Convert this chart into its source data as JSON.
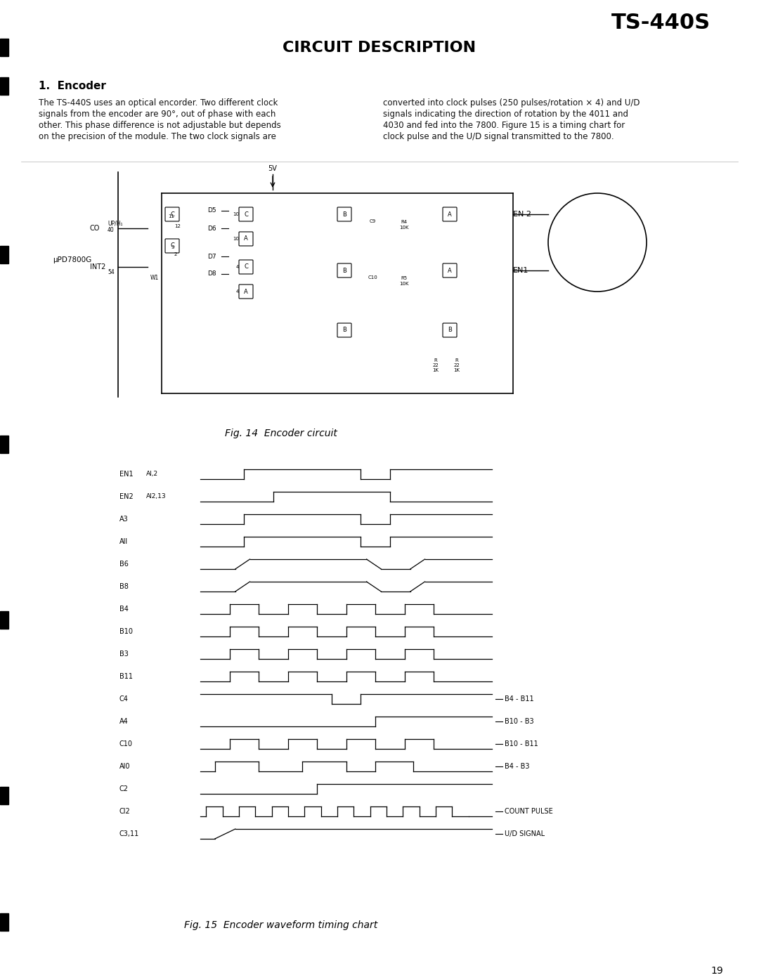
{
  "title_model": "TS-440S",
  "main_title": "CIRCUIT DESCRIPTION",
  "section_title": "1.  Encoder",
  "body_left": "The TS-440S uses an optical encorder. Two different clock\nsignals from the encoder are 90°, out of phase with each\nother. This phase difference is not adjustable but depends\non the precision of the module. The two clock signals are",
  "body_right": "converted into clock pulses (250 pulses/rotation × 4) and U/D\nsignals indicating the direction of rotation by the 4011 and\n4030 and fed into the 7800. Figure 15 is a timing chart for\nclock pulse and the U/D signal transmitted to the 7800.",
  "fig14_caption": "Fig. 14  Encoder circuit",
  "fig15_caption": "Fig. 15  Encoder waveform timing chart",
  "page_number": "19",
  "bg_color": "#ffffff",
  "text_color": "#000000",
  "waveform_signals": [
    {
      "label": "EN1   Al,2",
      "type": "wide_pulse"
    },
    {
      "label": "EN2   Al2,13",
      "type": "wide_pulse_offset"
    },
    {
      "label": "A3",
      "type": "wide_pulse"
    },
    {
      "label": "All",
      "type": "wide_pulse"
    },
    {
      "label": "B6",
      "type": "wide_pulse_smooth"
    },
    {
      "label": "B8",
      "type": "wide_pulse_smooth"
    },
    {
      "label": "B4",
      "type": "narrow_pulse"
    },
    {
      "label": "B10",
      "type": "narrow_pulse"
    },
    {
      "label": "B3",
      "type": "narrow_pulse"
    },
    {
      "label": "B11",
      "type": "narrow_pulse"
    },
    {
      "label": "C4",
      "type": "high_then_pulse"
    },
    {
      "label": "A4",
      "type": "long_high"
    },
    {
      "label": "C10",
      "type": "narrow_pulse"
    },
    {
      "label": "Al0",
      "type": "two_pulses"
    },
    {
      "label": "C2",
      "type": "long_high2"
    },
    {
      "label": "Cl2",
      "type": "fast_pulse"
    },
    {
      "label": "C3,11",
      "type": "ud_signal"
    }
  ],
  "waveform_annotations": [
    {
      "text": "B4 - B11",
      "row": 10
    },
    {
      "text": "B10 - B3",
      "row": 11
    },
    {
      "text": "B10 - B11",
      "row": 12
    },
    {
      "text": "B4 - B3",
      "row": 13
    },
    {
      "text": "COUNT PULSE",
      "row": 15
    },
    {
      "text": "U/D SIGNAL",
      "row": 16
    }
  ]
}
